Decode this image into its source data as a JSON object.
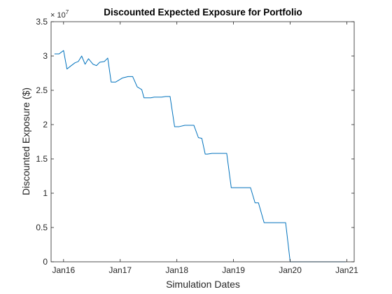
{
  "chart_data": {
    "type": "line",
    "title": "Discounted Expected Exposure for Portfolio",
    "xlabel": "Simulation Dates",
    "ylabel": "Discounted Exposure ($)",
    "y_multiplier_base": "× 10",
    "y_multiplier_exponent": "7",
    "x_ticks": [
      {
        "label": "Jan16",
        "x": 2016.0
      },
      {
        "label": "Jan17",
        "x": 2017.0
      },
      {
        "label": "Jan18",
        "x": 2018.0
      },
      {
        "label": "Jan19",
        "x": 2019.0
      },
      {
        "label": "Jan20",
        "x": 2020.0
      },
      {
        "label": "Jan21",
        "x": 2021.0
      }
    ],
    "y_ticks": [
      {
        "label": "0",
        "y": 0
      },
      {
        "label": "0.5",
        "y": 0.5
      },
      {
        "label": "1",
        "y": 1
      },
      {
        "label": "1.5",
        "y": 1.5
      },
      {
        "label": "2",
        "y": 2
      },
      {
        "label": "2.5",
        "y": 2.5
      },
      {
        "label": "3",
        "y": 3
      },
      {
        "label": "3.5",
        "y": 3.5
      }
    ],
    "xlim": [
      2015.78,
      2021.13
    ],
    "ylim": [
      0,
      3.5
    ],
    "y_units": "x 10^7 $",
    "grid": false,
    "box": true,
    "line_color": "#0072BD",
    "series": [
      {
        "x": [
          2015.84,
          2015.92,
          2016.0,
          2016.06,
          2016.12,
          2016.2,
          2016.26,
          2016.32,
          2016.38,
          2016.44,
          2016.52,
          2016.58,
          2016.64,
          2016.72,
          2016.78,
          2016.84,
          2016.92,
          2017.0,
          2017.04,
          2017.14,
          2017.22,
          2017.3,
          2017.38,
          2017.42,
          2017.48,
          2017.54,
          2017.6,
          2017.66,
          2017.73,
          2017.8,
          2017.88,
          2017.96,
          2018.0,
          2018.04,
          2018.14,
          2018.22,
          2018.3,
          2018.38,
          2018.44,
          2018.5,
          2018.54,
          2018.62,
          2018.7,
          2018.78,
          2018.88,
          2018.96,
          2019.0,
          2019.04,
          2019.14,
          2019.22,
          2019.3,
          2019.38,
          2019.44,
          2019.54,
          2019.6,
          2019.68,
          2019.76,
          2019.84,
          2019.92,
          2020.0,
          2020.04,
          2020.14,
          2020.4,
          2020.8,
          2020.98
        ],
        "y": [
          3.03,
          3.03,
          3.08,
          2.81,
          2.85,
          2.9,
          2.92,
          3.0,
          2.88,
          2.96,
          2.88,
          2.86,
          2.91,
          2.92,
          2.97,
          2.62,
          2.62,
          2.66,
          2.68,
          2.7,
          2.7,
          2.55,
          2.51,
          2.39,
          2.39,
          2.39,
          2.4,
          2.4,
          2.4,
          2.41,
          2.41,
          1.97,
          1.97,
          1.97,
          1.99,
          1.99,
          1.99,
          1.81,
          1.8,
          1.57,
          1.57,
          1.58,
          1.58,
          1.58,
          1.58,
          1.08,
          1.08,
          1.08,
          1.08,
          1.08,
          1.08,
          0.86,
          0.86,
          0.57,
          0.57,
          0.57,
          0.57,
          0.57,
          0.57,
          0.0,
          0.0,
          0.0,
          0.0,
          0.0,
          0.0
        ]
      }
    ]
  }
}
